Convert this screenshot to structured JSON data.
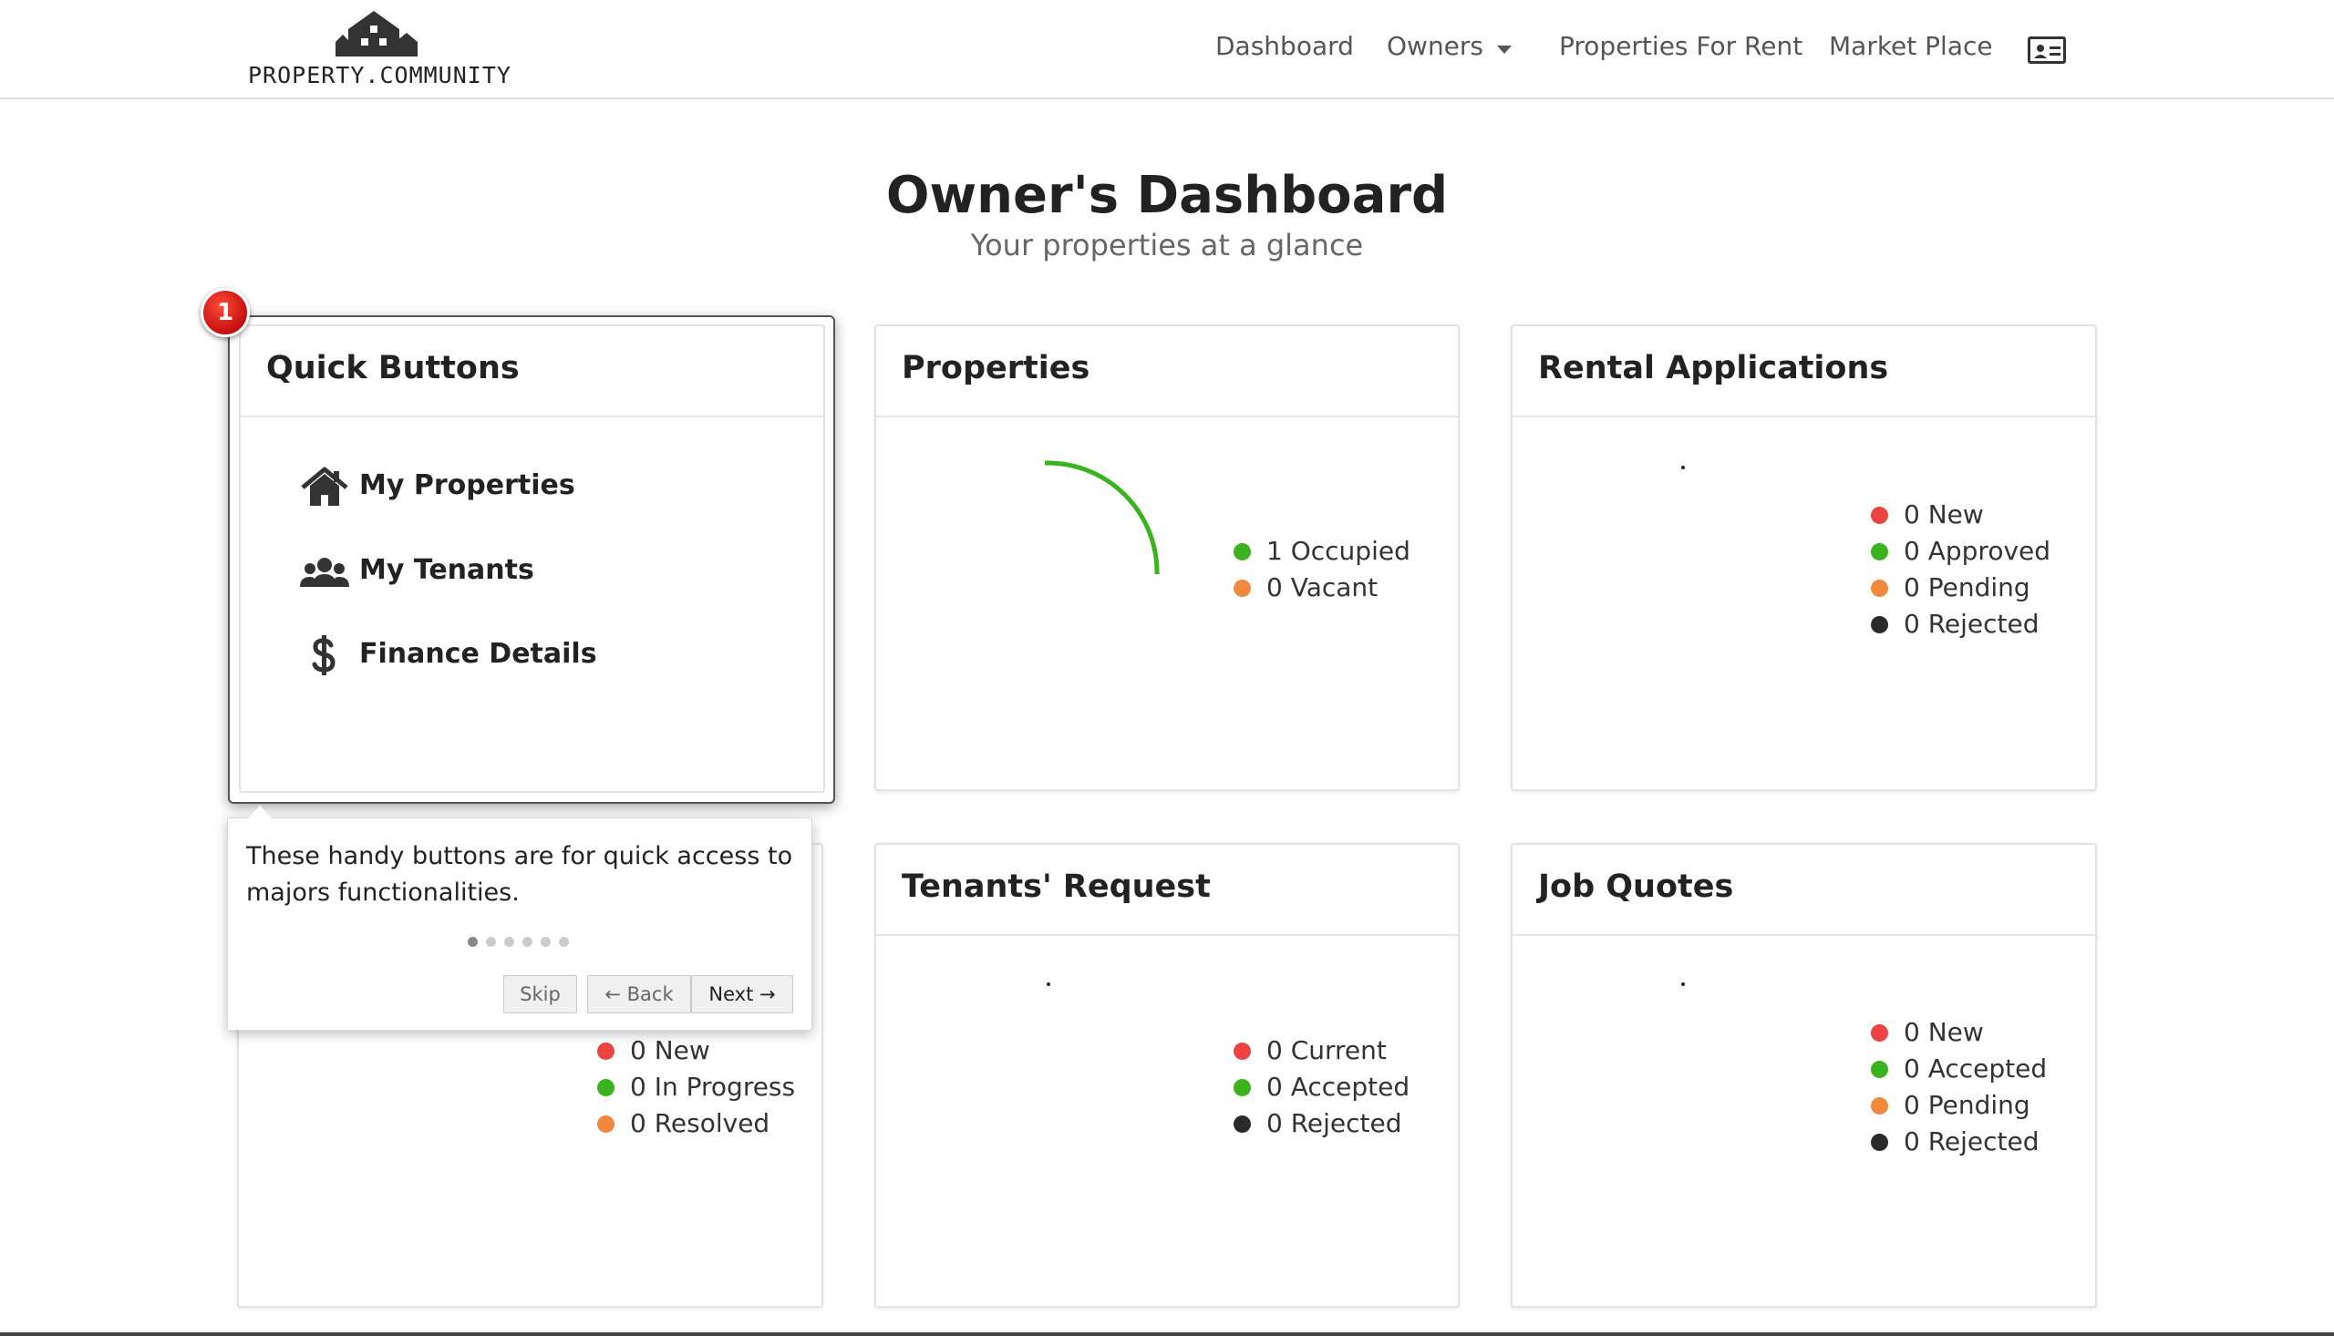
{
  "brand": {
    "name": "PROPERTY.COMMUNITY"
  },
  "nav": {
    "items": [
      "Dashboard",
      "Owners",
      "Properties For Rent",
      "Market Place"
    ],
    "profile_icon": "id-card-icon"
  },
  "page": {
    "title": "Owner's Dashboard",
    "subtitle": "Your properties at a glance"
  },
  "quick_buttons": {
    "title": "Quick Buttons",
    "items": [
      {
        "label": "My Properties",
        "icon": "home-icon"
      },
      {
        "label": "My Tenants",
        "icon": "users-icon"
      },
      {
        "label": "Finance Details",
        "icon": "dollar-icon"
      }
    ]
  },
  "properties": {
    "title": "Properties",
    "legend": [
      {
        "label": "1 Occupied",
        "color": "#3bb31e"
      },
      {
        "label": "0 Vacant",
        "color": "#f0883e"
      }
    ]
  },
  "rental_applications": {
    "title": "Rental Applications",
    "legend": [
      {
        "label": "0 New",
        "color": "#ec4343"
      },
      {
        "label": "0 Approved",
        "color": "#3bb31e"
      },
      {
        "label": "0 Pending",
        "color": "#f0883e"
      },
      {
        "label": "0 Rejected",
        "color": "#2a2a2a"
      }
    ]
  },
  "maintenance": {
    "legend": [
      {
        "label": "0 New",
        "color": "#ec4343"
      },
      {
        "label": "0 In Progress",
        "color": "#3bb31e"
      },
      {
        "label": "0 Resolved",
        "color": "#f0883e"
      }
    ]
  },
  "tenants_request": {
    "title": "Tenants' Request",
    "legend": [
      {
        "label": "0 Current",
        "color": "#ec4343"
      },
      {
        "label": "0 Accepted",
        "color": "#3bb31e"
      },
      {
        "label": "0 Rejected",
        "color": "#2a2a2a"
      }
    ]
  },
  "job_quotes": {
    "title": "Job Quotes",
    "legend": [
      {
        "label": "0 New",
        "color": "#ec4343"
      },
      {
        "label": "0 Accepted",
        "color": "#3bb31e"
      },
      {
        "label": "0 Pending",
        "color": "#f0883e"
      },
      {
        "label": "0 Rejected",
        "color": "#2a2a2a"
      }
    ]
  },
  "tour": {
    "step": "1",
    "text": "These handy buttons are for quick access to majors functionalities.",
    "total_steps": 6,
    "current_step": 1,
    "skip_label": "Skip",
    "back_label": "← Back",
    "next_label": "Next →"
  }
}
